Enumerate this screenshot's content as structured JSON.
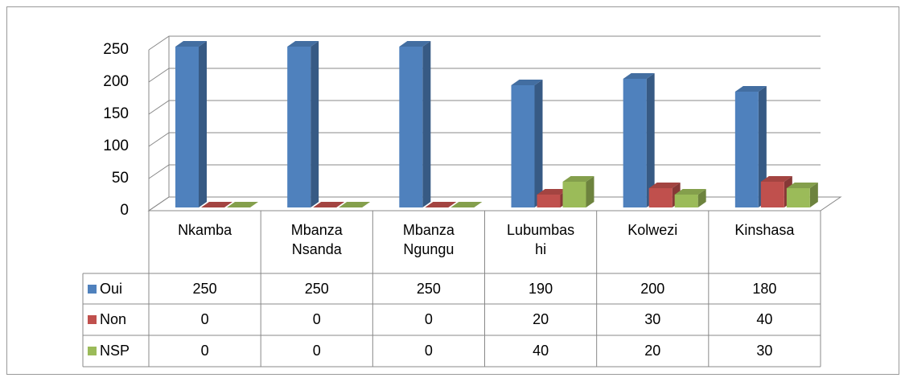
{
  "chart_data": {
    "type": "bar3d",
    "categories": [
      "Nkamba",
      "Mbanza Nsanda",
      "Mbanza Ngungu",
      "Lubumbashi",
      "Kolwezi",
      "Kinshasa"
    ],
    "series": [
      {
        "name": "Oui",
        "color": "#4f81bd",
        "values": [
          250,
          250,
          250,
          190,
          200,
          180
        ]
      },
      {
        "name": "Non",
        "color": "#c0504d",
        "values": [
          0,
          0,
          0,
          20,
          30,
          40
        ]
      },
      {
        "name": "NSP",
        "color": "#9bbb59",
        "values": [
          0,
          0,
          0,
          40,
          20,
          30
        ]
      }
    ],
    "ylim": [
      0,
      250
    ],
    "yticks": [
      0,
      50,
      100,
      150,
      200,
      250
    ],
    "grid": true,
    "data_table": true
  }
}
